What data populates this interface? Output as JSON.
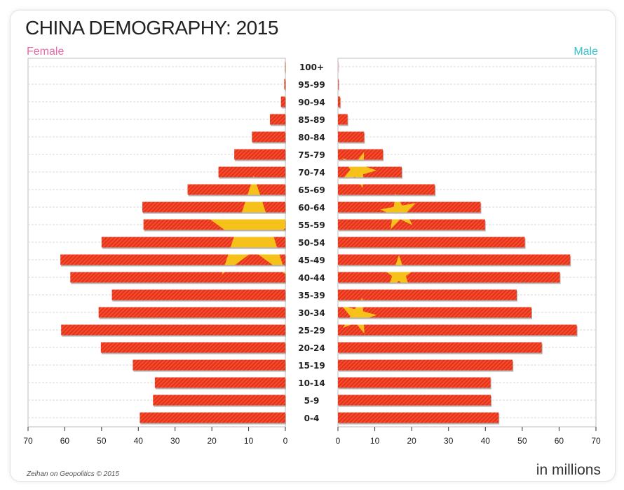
{
  "title": "CHINA DEMOGRAPHY: 2015",
  "legend": {
    "female": "Female",
    "male": "Male"
  },
  "source": "Zeihan on Geopolitics © 2015",
  "units": "in millions",
  "colors": {
    "bar": "#e8321e",
    "bar_stripe": "#f76a3c",
    "star": "#f6c21a",
    "female": "#e86aa8",
    "male": "#34c4cf",
    "grid": "#d9d9d9"
  },
  "chart_data": {
    "type": "bar",
    "orientation": "horizontal",
    "subtype": "population-pyramid",
    "title": "CHINA DEMOGRAPHY: 2015",
    "xlabel": "in millions",
    "xlim": [
      0,
      70
    ],
    "x_ticks": [
      70,
      60,
      50,
      40,
      30,
      20,
      10,
      0
    ],
    "x_ticks_male": [
      0,
      10,
      20,
      30,
      40,
      50,
      60,
      70
    ],
    "categories": [
      "100+",
      "95-99",
      "90-94",
      "85-89",
      "80-84",
      "75-79",
      "70-74",
      "65-69",
      "60-64",
      "55-59",
      "50-54",
      "45-49",
      "40-44",
      "35-39",
      "30-34",
      "25-29",
      "20-24",
      "15-19",
      "10-14",
      "5-9",
      "0-4"
    ],
    "series": [
      {
        "name": "Female",
        "values": [
          0.1,
          0.3,
          1.2,
          4.2,
          9.1,
          13.9,
          18.2,
          26.6,
          38.9,
          38.6,
          50.0,
          61.2,
          58.5,
          47.2,
          50.8,
          61.0,
          50.2,
          41.5,
          35.5,
          36.0,
          39.6
        ]
      },
      {
        "name": "Male",
        "values": [
          0.05,
          0.15,
          0.6,
          2.6,
          7.1,
          12.2,
          17.3,
          26.3,
          38.7,
          39.9,
          50.7,
          63.0,
          60.2,
          48.5,
          52.5,
          64.8,
          55.3,
          47.4,
          41.4,
          41.5,
          43.6
        ]
      }
    ]
  }
}
